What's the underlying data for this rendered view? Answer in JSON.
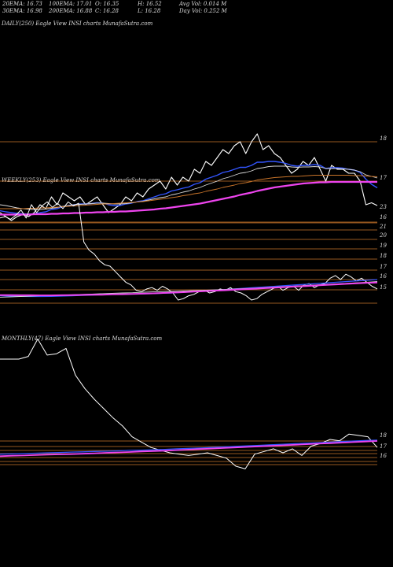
{
  "header": {
    "ema20": "20EMA: 16.73",
    "ema100": "100EMA: 17.01",
    "open": "O: 16.35",
    "high": "H: 16.52",
    "avg_vol": "Avg Vol: 0.014  M",
    "ema30": "30EMA: 16.98",
    "ema200": "200EMA: 16.88",
    "close": "C: 16.28",
    "low": "L: 16.28",
    "day_vol": "Day Vol: 0.252  M"
  },
  "colors": {
    "background": "#000000",
    "price": "#ffffff",
    "ema_blue": "#3355ff",
    "ema_white": "#d8d8d8",
    "ema_orange": "#c8742a",
    "ema_magenta": "#ee44ee",
    "level_line": "#c8742a"
  },
  "chart_data": [
    {
      "type": "line",
      "title": "DAILY(250) Eagle   View  INSI charts MunafaSutra.com",
      "price_levels": [
        "18",
        "17",
        "16"
      ],
      "series": [
        {
          "values": [
            16.1,
            16.0,
            15.9,
            16.0,
            16.05,
            16.0,
            16.1,
            16.3,
            16.2,
            16.5,
            16.3,
            16.6,
            16.5,
            16.4,
            16.5,
            16.3,
            16.4,
            16.5,
            16.3,
            16.1,
            16.2,
            16.3,
            16.5,
            16.4,
            16.6,
            16.5,
            16.7,
            16.8,
            16.9,
            16.7,
            17.0,
            16.8,
            17.0,
            16.9,
            17.2,
            17.1,
            17.4,
            17.3,
            17.5,
            17.7,
            17.6,
            17.8,
            17.9,
            17.6,
            17.9,
            18.1,
            17.7,
            17.8,
            17.6,
            17.5,
            17.3,
            17.1,
            17.2,
            17.4,
            17.3,
            17.5,
            17.2,
            16.9,
            17.3,
            17.2,
            17.2,
            17.1,
            17.1,
            16.9,
            16.3,
            16.35,
            16.28
          ]
        },
        {
          "values": [
            16.15,
            16.12,
            16.1,
            16.08,
            16.07,
            16.06,
            16.07,
            16.1,
            16.12,
            16.18,
            16.2,
            16.25,
            16.28,
            16.3,
            16.32,
            16.32,
            16.33,
            16.35,
            16.34,
            16.3,
            16.28,
            16.28,
            16.32,
            16.34,
            16.38,
            16.4,
            16.45,
            16.5,
            16.55,
            16.58,
            16.65,
            16.68,
            16.72,
            16.75,
            16.82,
            16.86,
            16.95,
            17.0,
            17.05,
            17.12,
            17.15,
            17.2,
            17.25,
            17.25,
            17.3,
            17.38,
            17.38,
            17.4,
            17.4,
            17.38,
            17.35,
            17.3,
            17.28,
            17.3,
            17.3,
            17.32,
            17.3,
            17.22,
            17.24,
            17.24,
            17.23,
            17.2,
            17.18,
            17.12,
            16.95,
            16.82,
            16.73
          ]
        },
        {
          "values": [
            16.3,
            16.28,
            16.25,
            16.22,
            16.2,
            16.19,
            16.18,
            16.18,
            16.19,
            16.21,
            16.23,
            16.26,
            16.28,
            16.3,
            16.31,
            16.32,
            16.33,
            16.34,
            16.34,
            16.33,
            16.32,
            16.32,
            16.33,
            16.35,
            16.37,
            16.39,
            16.42,
            16.45,
            16.48,
            16.5,
            16.55,
            16.58,
            16.62,
            16.65,
            16.7,
            16.74,
            16.8,
            16.85,
            16.9,
            16.96,
            17.0,
            17.05,
            17.1,
            17.12,
            17.16,
            17.22,
            17.24,
            17.27,
            17.28,
            17.28,
            17.28,
            17.26,
            17.25,
            17.26,
            17.26,
            17.27,
            17.26,
            17.22,
            17.22,
            17.22,
            17.21,
            17.2,
            17.18,
            17.14,
            17.06,
            17.02,
            16.98
          ]
        },
        {
          "values": [
            16.2,
            16.2,
            16.2,
            16.2,
            16.2,
            16.21,
            16.21,
            16.22,
            16.22,
            16.23,
            16.24,
            16.25,
            16.26,
            16.27,
            16.28,
            16.29,
            16.3,
            16.31,
            16.32,
            16.32,
            16.33,
            16.34,
            16.35,
            16.36,
            16.37,
            16.38,
            16.4,
            16.42,
            16.44,
            16.46,
            16.48,
            16.5,
            16.53,
            16.55,
            16.58,
            16.6,
            16.64,
            16.67,
            16.7,
            16.74,
            16.77,
            16.8,
            16.84,
            16.86,
            16.89,
            16.93,
            16.95,
            16.97,
            16.99,
            17.0,
            17.01,
            17.02,
            17.02,
            17.03,
            17.04,
            17.05,
            17.05,
            17.05,
            17.05,
            17.05,
            17.05,
            17.05,
            17.04,
            17.04,
            17.03,
            17.02,
            17.01
          ]
        },
        {
          "values": [
            16.05,
            16.05,
            16.05,
            16.05,
            16.05,
            16.05,
            16.06,
            16.06,
            16.06,
            16.07,
            16.07,
            16.08,
            16.08,
            16.09,
            16.09,
            16.1,
            16.1,
            16.11,
            16.11,
            16.12,
            16.12,
            16.13,
            16.13,
            16.14,
            16.15,
            16.16,
            16.17,
            16.18,
            16.2,
            16.21,
            16.23,
            16.25,
            16.27,
            16.29,
            16.31,
            16.33,
            16.36,
            16.39,
            16.42,
            16.45,
            16.48,
            16.51,
            16.55,
            16.58,
            16.61,
            16.65,
            16.68,
            16.71,
            16.74,
            16.76,
            16.78,
            16.8,
            16.82,
            16.84,
            16.85,
            16.86,
            16.87,
            16.87,
            16.88,
            16.88,
            16.88,
            16.88,
            16.88,
            16.88,
            16.88,
            16.88,
            16.88
          ]
        }
      ]
    },
    {
      "type": "line",
      "title": "WEEKLY(253) Eagle   View  INSI charts MunafaSutra.com",
      "price_levels": [
        "23",
        "21",
        "20",
        "19",
        "18",
        "17",
        "16",
        "15"
      ],
      "series": [
        {
          "values": [
            21.6,
            21.7,
            21.5,
            21.8,
            22.2,
            21.6,
            22.6,
            22.0,
            22.5,
            22.8,
            22.4,
            22.7,
            22.3,
            22.8,
            22.5,
            22.7,
            19.8,
            19.2,
            18.9,
            18.4,
            18.1,
            18.0,
            17.6,
            17.2,
            16.8,
            16.6,
            16.2,
            16.1,
            16.3,
            16.4,
            16.2,
            16.5,
            16.3,
            16.0,
            15.5,
            15.6,
            15.8,
            15.9,
            16.1,
            16.2,
            16.0,
            16.1,
            16.3,
            16.2,
            16.4,
            16.1,
            16.0,
            15.8,
            15.5,
            15.6,
            15.9,
            16.1,
            16.3,
            16.5,
            16.2,
            16.4,
            16.5,
            16.2,
            16.6,
            16.7,
            16.4,
            16.6,
            16.7,
            17.1,
            17.3,
            17.0,
            17.4,
            17.2,
            16.9,
            17.1,
            16.8,
            16.5,
            16.3
          ]
        },
        {
          "values": [
            15.8,
            15.78,
            15.76,
            15.75,
            15.75,
            15.76,
            15.78,
            15.8,
            15.83,
            15.85,
            15.88,
            15.9,
            15.9,
            15.92,
            15.94,
            15.95,
            15.98,
            16.0,
            16.05,
            16.1,
            16.15,
            16.2,
            16.25,
            16.3,
            16.35,
            16.4,
            16.45,
            16.5,
            16.55,
            16.6,
            16.65,
            16.7,
            16.75,
            16.8,
            16.85,
            16.9,
            16.95,
            17.0
          ]
        },
        {
          "values": [
            15.7,
            15.72,
            15.75,
            15.78,
            15.8,
            15.82,
            15.85,
            15.87,
            15.9,
            15.92,
            15.95,
            15.97,
            16.0,
            16.02,
            16.05,
            16.08,
            16.1,
            16.12,
            16.15,
            16.18,
            16.2,
            16.23,
            16.26,
            16.3,
            16.33,
            16.36,
            16.4,
            16.44,
            16.48,
            16.52,
            16.56,
            16.6,
            16.64,
            16.68,
            16.72,
            16.76,
            16.8,
            16.85
          ]
        },
        {
          "values": [
            15.85,
            15.85,
            15.84,
            15.84,
            15.83,
            15.83,
            15.84,
            15.85,
            15.86,
            15.87,
            15.88,
            15.9,
            15.91,
            15.93,
            15.95,
            15.97,
            16.0,
            16.03,
            16.06,
            16.1,
            16.13,
            16.17,
            16.2,
            16.24,
            16.28,
            16.32,
            16.36,
            16.4,
            16.44,
            16.48,
            16.52,
            16.56,
            16.6,
            16.64,
            16.68,
            16.72,
            16.76,
            16.78
          ]
        }
      ]
    },
    {
      "type": "line",
      "title": "MONTHLY(47) Eagle   View  INSI charts MunafaSutra.com",
      "price_levels": [
        "18",
        "17",
        "16"
      ],
      "series": [
        {
          "values": [
            23.0,
            23.0,
            23.0,
            23.2,
            24.5,
            23.3,
            23.4,
            23.8,
            21.8,
            20.8,
            20.0,
            19.3,
            18.6,
            18.0,
            17.2,
            16.8,
            16.4,
            16.2,
            16.0,
            15.9,
            15.8,
            15.9,
            16.0,
            15.8,
            15.6,
            15.0,
            14.8,
            15.9,
            16.1,
            16.3,
            16.0,
            16.3,
            15.8,
            16.5,
            16.7,
            17.0,
            16.9,
            17.4,
            17.3,
            17.2,
            16.4
          ]
        },
        {
          "values": [
            15.9,
            15.92,
            15.95,
            15.97,
            16.0,
            16.02,
            16.05,
            16.07,
            16.1,
            16.12,
            16.15,
            16.18,
            16.2,
            16.23,
            16.26,
            16.3,
            16.33,
            16.36,
            16.4,
            16.44,
            16.48,
            16.52,
            16.56,
            16.6,
            16.64,
            16.68,
            16.72,
            16.76,
            16.8,
            16.84,
            16.88,
            16.92,
            16.95
          ]
        },
        {
          "values": [
            15.75,
            15.78,
            15.8,
            15.83,
            15.86,
            15.88,
            15.9,
            15.93,
            15.96,
            16.0,
            16.03,
            16.06,
            16.1,
            16.13,
            16.16,
            16.2,
            16.24,
            16.28,
            16.32,
            16.36,
            16.4,
            16.44,
            16.48,
            16.52,
            16.56,
            16.6,
            16.64,
            16.68,
            16.72,
            16.76,
            16.8,
            16.84,
            16.88
          ]
        }
      ]
    }
  ]
}
